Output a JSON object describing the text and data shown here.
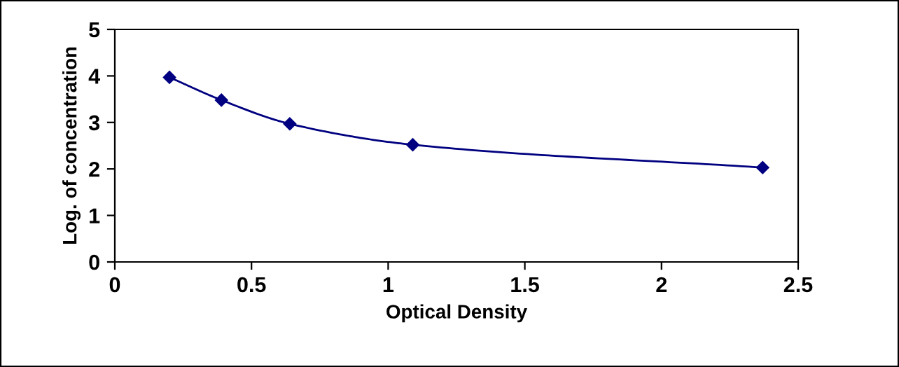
{
  "chart_data": {
    "type": "line",
    "xlabel": "Optical Density",
    "ylabel": "Log. of concentration",
    "x": [
      0.2,
      0.39,
      0.64,
      1.09,
      2.37
    ],
    "series": [
      {
        "color": "#000080",
        "values": [
          3.97,
          3.48,
          2.97,
          2.52,
          2.03
        ]
      }
    ],
    "xlim": [
      0,
      2.5
    ],
    "xticks": [
      0,
      0.5,
      1,
      1.5,
      2,
      2.5
    ],
    "ylim": [
      0,
      5
    ],
    "yticks": [
      0,
      1,
      2,
      3,
      4,
      5
    ],
    "grid": false,
    "legend": false,
    "marker": "diamond",
    "line_style": "solid"
  }
}
